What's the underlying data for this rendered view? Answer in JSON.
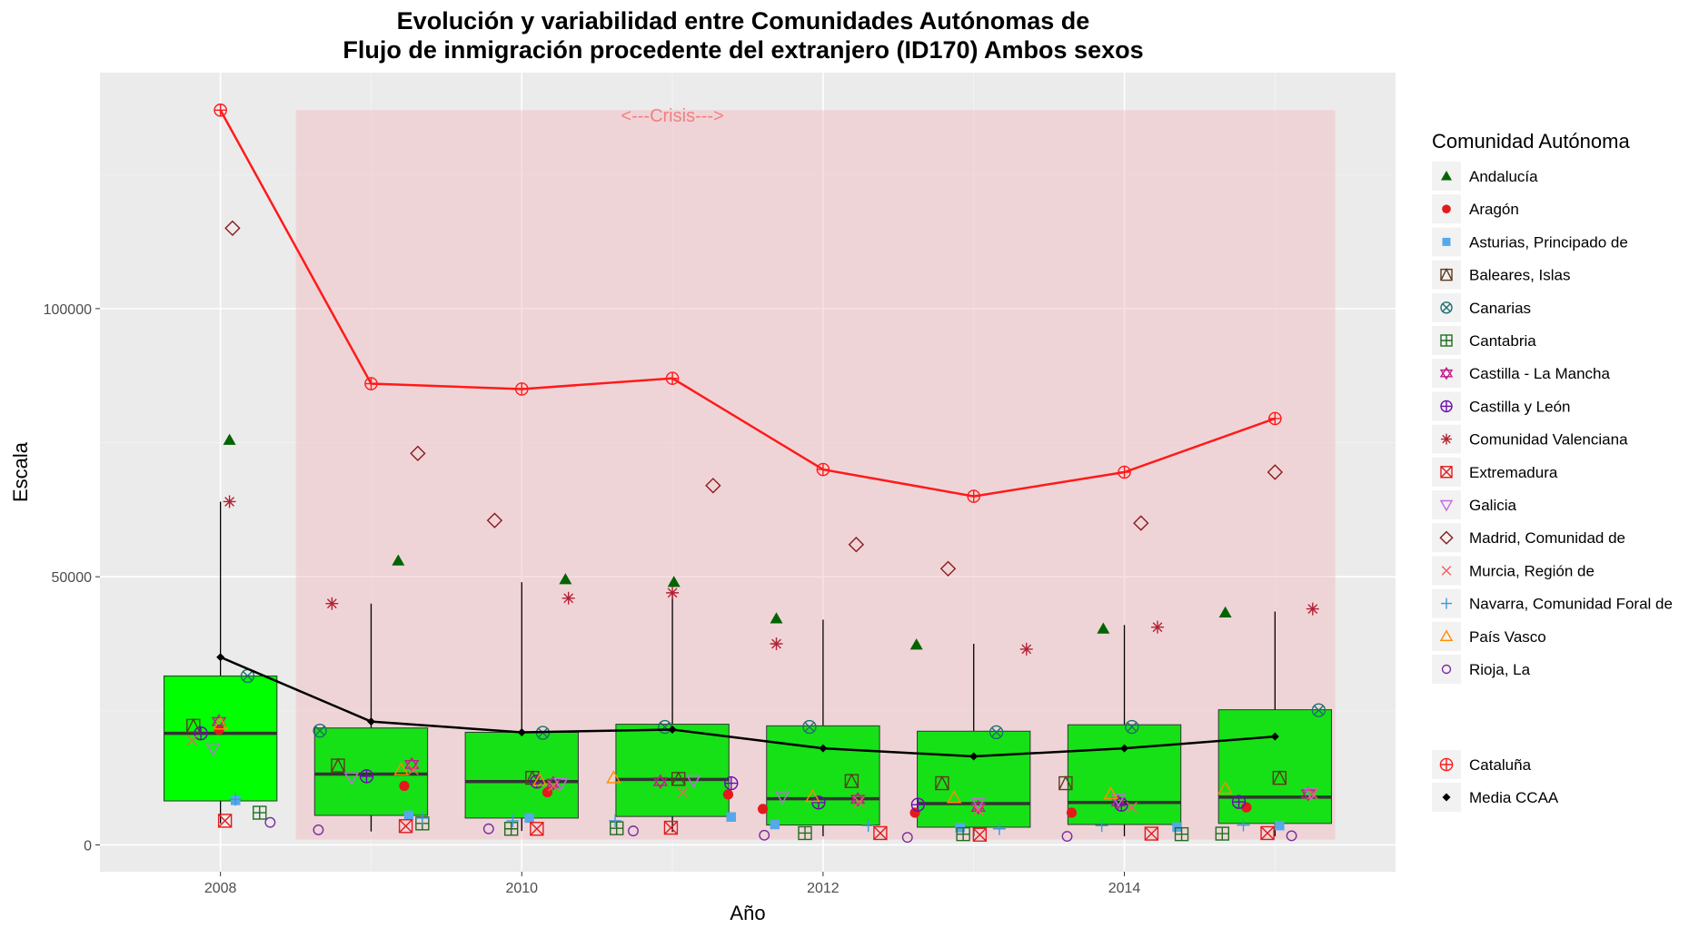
{
  "chart_data": {
    "type": "boxplot",
    "title_line1": "Evolución y variabilidad entre Comunidades Autónomas de",
    "title_line2": "Flujo de inmigración procedente del extranjero (ID170) Ambos sexos",
    "xlabel": "Año",
    "ylabel": "Escala",
    "x_ticks": [
      "2008",
      "2010",
      "2012",
      "2014"
    ],
    "y_ticks": [
      "0",
      "50000",
      "100000"
    ],
    "xlim": [
      2007.2,
      2015.8
    ],
    "ylim": [
      -5000,
      144000
    ],
    "annotation": {
      "text": "<---Crisis--->",
      "x": 2011,
      "y": 136000
    },
    "crisis_band": {
      "x": [
        2008.5,
        2015.4
      ],
      "y": [
        1000,
        137000
      ]
    },
    "legend_title": "Comunidad Autónoma",
    "years": [
      2008,
      2009,
      2010,
      2011,
      2012,
      2013,
      2014,
      2015
    ],
    "boxes": [
      {
        "year": 2008,
        "q1": 8200,
        "median": 20800,
        "q3": 31500,
        "whisker_low": 4000,
        "whisker_high": 64000,
        "fill": "#00ff00"
      },
      {
        "year": 2009,
        "q1": 5500,
        "median": 13200,
        "q3": 21800,
        "whisker_low": 2500,
        "whisker_high": 45000,
        "fill": "#16e116"
      },
      {
        "year": 2010,
        "q1": 5000,
        "median": 11800,
        "q3": 21000,
        "whisker_low": 2600,
        "whisker_high": 49000,
        "fill": "#16e116"
      },
      {
        "year": 2011,
        "q1": 5300,
        "median": 12200,
        "q3": 22500,
        "whisker_low": 2400,
        "whisker_high": 47000,
        "fill": "#16e116"
      },
      {
        "year": 2012,
        "q1": 3700,
        "median": 8600,
        "q3": 22200,
        "whisker_low": 1600,
        "whisker_high": 42000,
        "fill": "#16e116"
      },
      {
        "year": 2013,
        "q1": 3300,
        "median": 7700,
        "q3": 21200,
        "whisker_low": 1600,
        "whisker_high": 37500,
        "fill": "#16e116"
      },
      {
        "year": 2014,
        "q1": 3800,
        "median": 7900,
        "q3": 22400,
        "whisker_low": 1600,
        "whisker_high": 41000,
        "fill": "#16e116"
      },
      {
        "year": 2015,
        "q1": 4000,
        "median": 8900,
        "q3": 25200,
        "whisker_low": 1600,
        "whisker_high": 43500,
        "fill": "#16e116"
      }
    ],
    "series": [
      {
        "name": "Andalucía",
        "shape": "triangle-filled",
        "color": "#006400",
        "values": [
          75500,
          53000,
          49500,
          49000,
          42200,
          37300,
          40300,
          43300
        ],
        "jitter": [
          0.06,
          0.18,
          0.29,
          0.01,
          -0.31,
          -0.38,
          -0.14,
          -0.33
        ]
      },
      {
        "name": "Aragón",
        "shape": "circle-filled",
        "color": "#e31a1c",
        "values": [
          21500,
          11000,
          9800,
          9400,
          6700,
          6000,
          6000,
          7000
        ],
        "jitter": [
          -0.01,
          0.22,
          0.17,
          0.37,
          -0.4,
          -0.39,
          -0.35,
          -0.19
        ]
      },
      {
        "name": "Asturias, Principado de",
        "shape": "square-filled",
        "color": "#56a8e8",
        "values": [
          8300,
          5500,
          5000,
          5200,
          3800,
          3200,
          3300,
          3600
        ],
        "jitter": [
          0.1,
          0.25,
          0.05,
          0.39,
          -0.32,
          -0.09,
          0.35,
          0.03
        ]
      },
      {
        "name": "Baleares, Islas",
        "shape": "square-triangle",
        "color": "#5c3a1e",
        "values": [
          22200,
          14800,
          12500,
          12300,
          11900,
          11500,
          11500,
          12500
        ],
        "jitter": [
          -0.18,
          -0.22,
          0.07,
          0.04,
          0.19,
          -0.21,
          -0.39,
          0.03
        ]
      },
      {
        "name": "Canarias",
        "shape": "circle-x",
        "color": "#1f6e6e",
        "values": [
          31500,
          21300,
          20900,
          22000,
          22000,
          21000,
          22000,
          25100
        ],
        "jitter": [
          0.18,
          -0.34,
          0.14,
          -0.05,
          -0.09,
          0.15,
          0.05,
          0.29
        ]
      },
      {
        "name": "Cantabria",
        "shape": "square-plus",
        "color": "#1f6e1f",
        "values": [
          6000,
          4000,
          3000,
          3100,
          2200,
          2000,
          2000,
          2100
        ],
        "jitter": [
          0.26,
          0.34,
          -0.07,
          -0.37,
          -0.12,
          -0.07,
          0.38,
          -0.35
        ]
      },
      {
        "name": "Castilla - La Mancha",
        "shape": "star-of-david",
        "color": "#c41b8a",
        "values": [
          23000,
          15000,
          11500,
          11800,
          8500,
          7000,
          8000,
          9500
        ],
        "jitter": [
          -0.01,
          0.27,
          0.21,
          -0.08,
          0.23,
          0.03,
          -0.04,
          0.22
        ]
      },
      {
        "name": "Castilla y León",
        "shape": "circle-plus",
        "color": "#6a0dad",
        "values": [
          20800,
          12800,
          11800,
          11500,
          7900,
          7500,
          7500,
          8000
        ],
        "jitter": [
          -0.13,
          -0.03,
          0.1,
          0.39,
          -0.03,
          -0.37,
          -0.02,
          -0.24
        ]
      },
      {
        "name": "Comunidad Valenciana",
        "shape": "asterisk",
        "color": "#b22234",
        "values": [
          64000,
          45000,
          46000,
          47000,
          37500,
          36500,
          40600,
          44000
        ],
        "jitter": [
          0.06,
          -0.26,
          0.31,
          0.0,
          -0.31,
          0.35,
          0.22,
          0.25
        ]
      },
      {
        "name": "Extremadura",
        "shape": "square-x",
        "color": "#e31a1c",
        "values": [
          4500,
          3500,
          3000,
          3200,
          2200,
          1900,
          2100,
          2200
        ],
        "jitter": [
          0.03,
          0.23,
          0.1,
          -0.01,
          0.38,
          0.04,
          0.18,
          -0.05
        ]
      },
      {
        "name": "Galicia",
        "shape": "triangle-down",
        "color": "#c36ade",
        "values": [
          18000,
          12500,
          11500,
          12000,
          9000,
          7800,
          8500,
          9700
        ],
        "jitter": [
          -0.05,
          -0.13,
          0.26,
          0.14,
          -0.27,
          0.03,
          -0.04,
          0.24
        ]
      },
      {
        "name": "Madrid, Comunidad de",
        "shape": "diamond-open",
        "color": "#8b1a1a",
        "values": [
          115000,
          73000,
          60500,
          67000,
          56000,
          51500,
          60000,
          69500
        ],
        "jitter": [
          0.08,
          0.31,
          -0.18,
          0.27,
          0.22,
          -0.17,
          0.11,
          0.0
        ]
      },
      {
        "name": "Murcia, Región de",
        "shape": "x-cross",
        "color": "#f06060",
        "values": [
          19500,
          14000,
          11000,
          9800,
          8000,
          6500,
          7000,
          9500
        ],
        "jitter": [
          -0.19,
          0.28,
          0.21,
          0.07,
          0.24,
          0.03,
          0.05,
          0.25
        ]
      },
      {
        "name": "Navarra, Comunidad Foral de",
        "shape": "plus",
        "color": "#3b9ad8",
        "values": [
          8500,
          5000,
          4500,
          4500,
          3600,
          3000,
          3600,
          3700
        ],
        "jitter": [
          0.1,
          0.34,
          -0.06,
          -0.38,
          0.3,
          0.17,
          -0.15,
          -0.21
        ]
      },
      {
        "name": "País Vasco",
        "shape": "triangle-open",
        "color": "#ff8c00",
        "values": [
          22500,
          14000,
          12000,
          12500,
          9000,
          8800,
          9500,
          10500
        ],
        "jitter": [
          0.0,
          0.2,
          0.12,
          -0.39,
          -0.07,
          -0.13,
          -0.09,
          -0.33
        ]
      },
      {
        "name": "Rioja, La",
        "shape": "circle-open",
        "color": "#7b2d9e",
        "values": [
          4200,
          2800,
          3000,
          2600,
          1800,
          1400,
          1600,
          1700
        ],
        "jitter": [
          0.33,
          -0.35,
          -0.22,
          -0.26,
          -0.39,
          -0.44,
          -0.38,
          0.11
        ]
      }
    ],
    "highlight_series": {
      "name": "Cataluña",
      "shape": "circle-plus-open",
      "color": "#ff1a1a",
      "values": [
        137000,
        86000,
        85000,
        87000,
        70000,
        65000,
        69500,
        79500
      ]
    },
    "mean_series": {
      "name": "Media CCAA",
      "shape": "diamond-filled",
      "color": "#000000",
      "values": [
        35000,
        23000,
        21000,
        21500,
        18000,
        16500,
        18000,
        20200
      ]
    },
    "colors": {
      "panel_bg": "#ebebeb",
      "grid_major": "#ffffff",
      "grid_minor": "#f4f4f4",
      "crisis_fill": "#f4b8be",
      "crisis_text": "#f08080",
      "legend_key_bg": "#f2f2f2"
    }
  }
}
